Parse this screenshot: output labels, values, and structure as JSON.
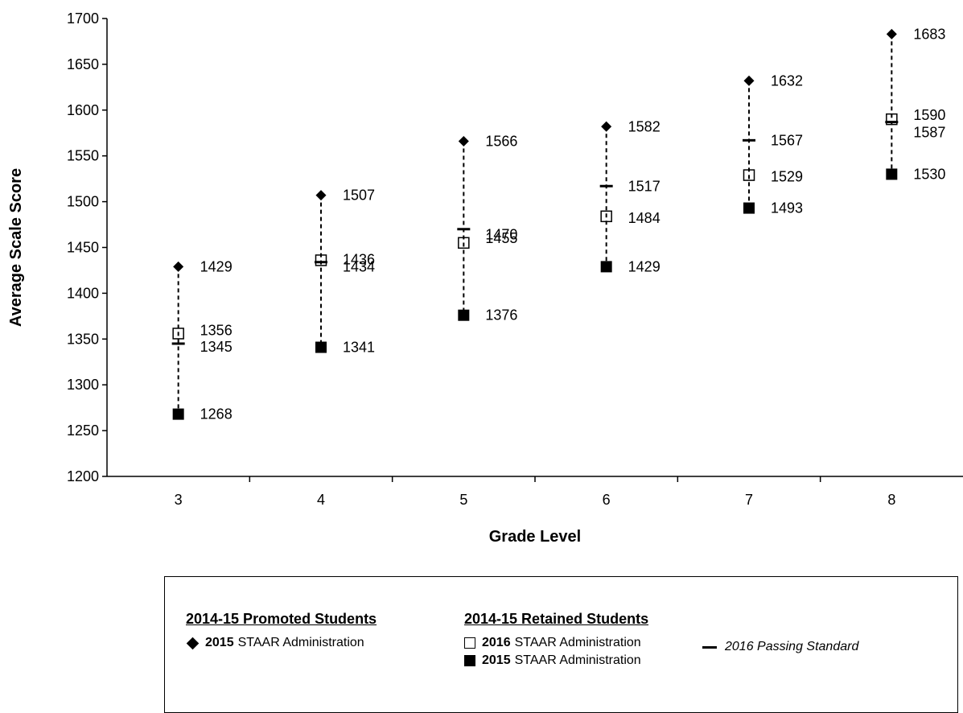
{
  "chart_data": {
    "type": "scatter",
    "xlabel": "Grade Level",
    "ylabel": "Average Scale Score",
    "ylim": [
      1200,
      1700
    ],
    "yticks": [
      1200,
      1250,
      1300,
      1350,
      1400,
      1450,
      1500,
      1550,
      1600,
      1650,
      1700
    ],
    "categories": [
      "3",
      "4",
      "5",
      "6",
      "7",
      "8"
    ],
    "grid": false,
    "series": [
      {
        "name": "2015 STAAR Administration",
        "group": "2014-15 Promoted Students",
        "marker": "diamond",
        "values": [
          1429,
          1507,
          1566,
          1582,
          1632,
          1683
        ]
      },
      {
        "name": "2016 STAAR Administration",
        "group": "2014-15 Retained Students",
        "marker": "open-square",
        "values": [
          1356,
          1436,
          1455,
          1484,
          1529,
          1590
        ]
      },
      {
        "name": "2015 STAAR Administration",
        "group": "2014-15 Retained Students",
        "marker": "filled-square",
        "values": [
          1268,
          1341,
          1376,
          1429,
          1493,
          1530
        ]
      },
      {
        "name": "2016 Passing Standard",
        "marker": "dash",
        "values": [
          1345,
          1434,
          1470,
          1517,
          1567,
          1587
        ]
      }
    ]
  },
  "legend": {
    "promoted": {
      "heading": "2014-15 Promoted Students",
      "row_year": "2015",
      "row_text": "STAAR Administration"
    },
    "retained": {
      "heading": "2014-15 Retained Students",
      "row1_year": "2016",
      "row1_text": "STAAR Administration",
      "row2_year": "2015",
      "row2_text": "STAAR Administration"
    },
    "standard": {
      "text": "2016 Passing Standard"
    }
  }
}
